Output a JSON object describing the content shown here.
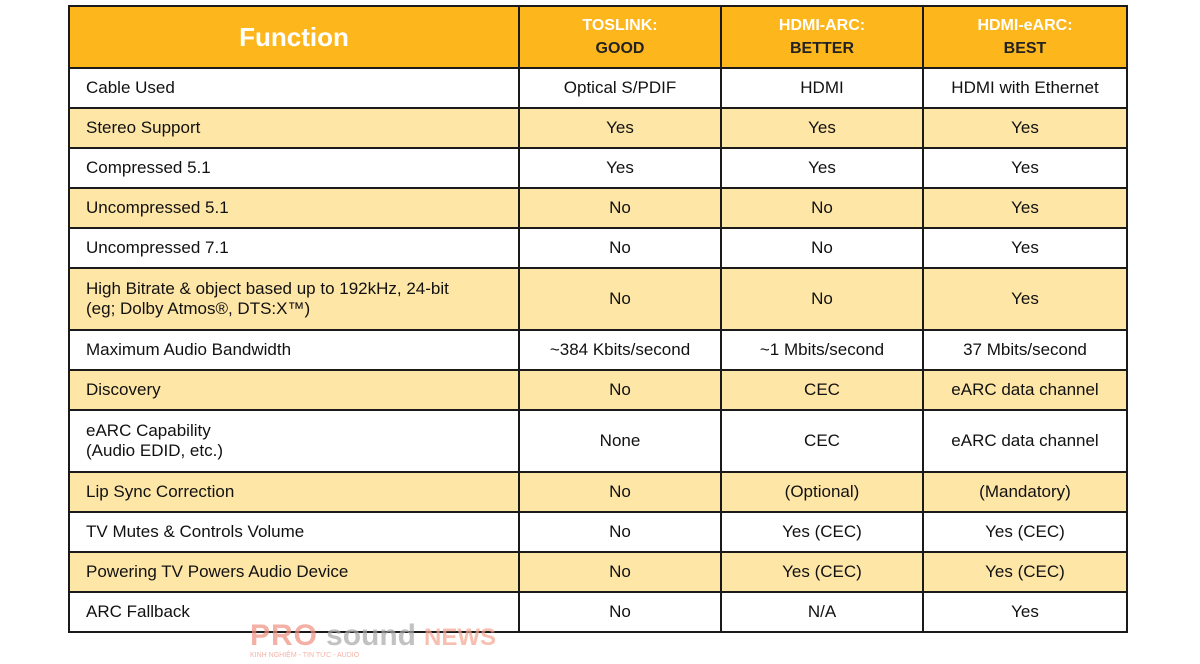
{
  "header": {
    "function": "Function",
    "columns": [
      {
        "name": "TOSLINK:",
        "rating": "GOOD"
      },
      {
        "name": "HDMI-ARC:",
        "rating": "BETTER"
      },
      {
        "name": "HDMI-eARC:",
        "rating": "BEST"
      }
    ]
  },
  "rows": [
    {
      "label": [
        "Cable Used"
      ],
      "values": [
        "Optical S/PDIF",
        "HDMI",
        "HDMI with Ethernet"
      ]
    },
    {
      "label": [
        "Stereo Support"
      ],
      "values": [
        "Yes",
        "Yes",
        "Yes"
      ]
    },
    {
      "label": [
        "Compressed 5.1"
      ],
      "values": [
        "Yes",
        "Yes",
        "Yes"
      ]
    },
    {
      "label": [
        "Uncompressed 5.1"
      ],
      "values": [
        "No",
        "No",
        "Yes"
      ]
    },
    {
      "label": [
        "Uncompressed 7.1"
      ],
      "values": [
        "No",
        "No",
        "Yes"
      ]
    },
    {
      "label": [
        "High Bitrate & object based up to 192kHz, 24-bit",
        "(eg; Dolby Atmos®, DTS:X™)"
      ],
      "values": [
        "No",
        "No",
        "Yes"
      ]
    },
    {
      "label": [
        "Maximum Audio Bandwidth"
      ],
      "values": [
        "~384 Kbits/second",
        "~1 Mbits/second",
        "37 Mbits/second"
      ]
    },
    {
      "label": [
        "Discovery"
      ],
      "values": [
        "No",
        "CEC",
        "eARC data channel"
      ]
    },
    {
      "label": [
        "eARC Capability",
        "(Audio EDID, etc.)"
      ],
      "values": [
        "None",
        "CEC",
        "eARC data channel"
      ]
    },
    {
      "label": [
        "Lip Sync Correction"
      ],
      "values": [
        "No",
        "(Optional)",
        "(Mandatory)"
      ]
    },
    {
      "label": [
        "TV Mutes & Controls Volume"
      ],
      "values": [
        "No",
        "Yes (CEC)",
        "Yes (CEC)"
      ]
    },
    {
      "label": [
        "Powering TV Powers Audio Device"
      ],
      "values": [
        "No",
        "Yes (CEC)",
        "Yes (CEC)"
      ]
    },
    {
      "label": [
        "ARC Fallback"
      ],
      "values": [
        "No",
        "N/A",
        "Yes"
      ]
    }
  ],
  "watermark": {
    "pro": "PRO",
    "sound": "sound",
    "news": "NEWS",
    "tagline": "KINH NGHIỆM - TIN TỨC - AUDIO"
  },
  "colors": {
    "header": "#FDB71C",
    "alt_row": "#FEE6A6",
    "border": "#1a1a1a"
  }
}
